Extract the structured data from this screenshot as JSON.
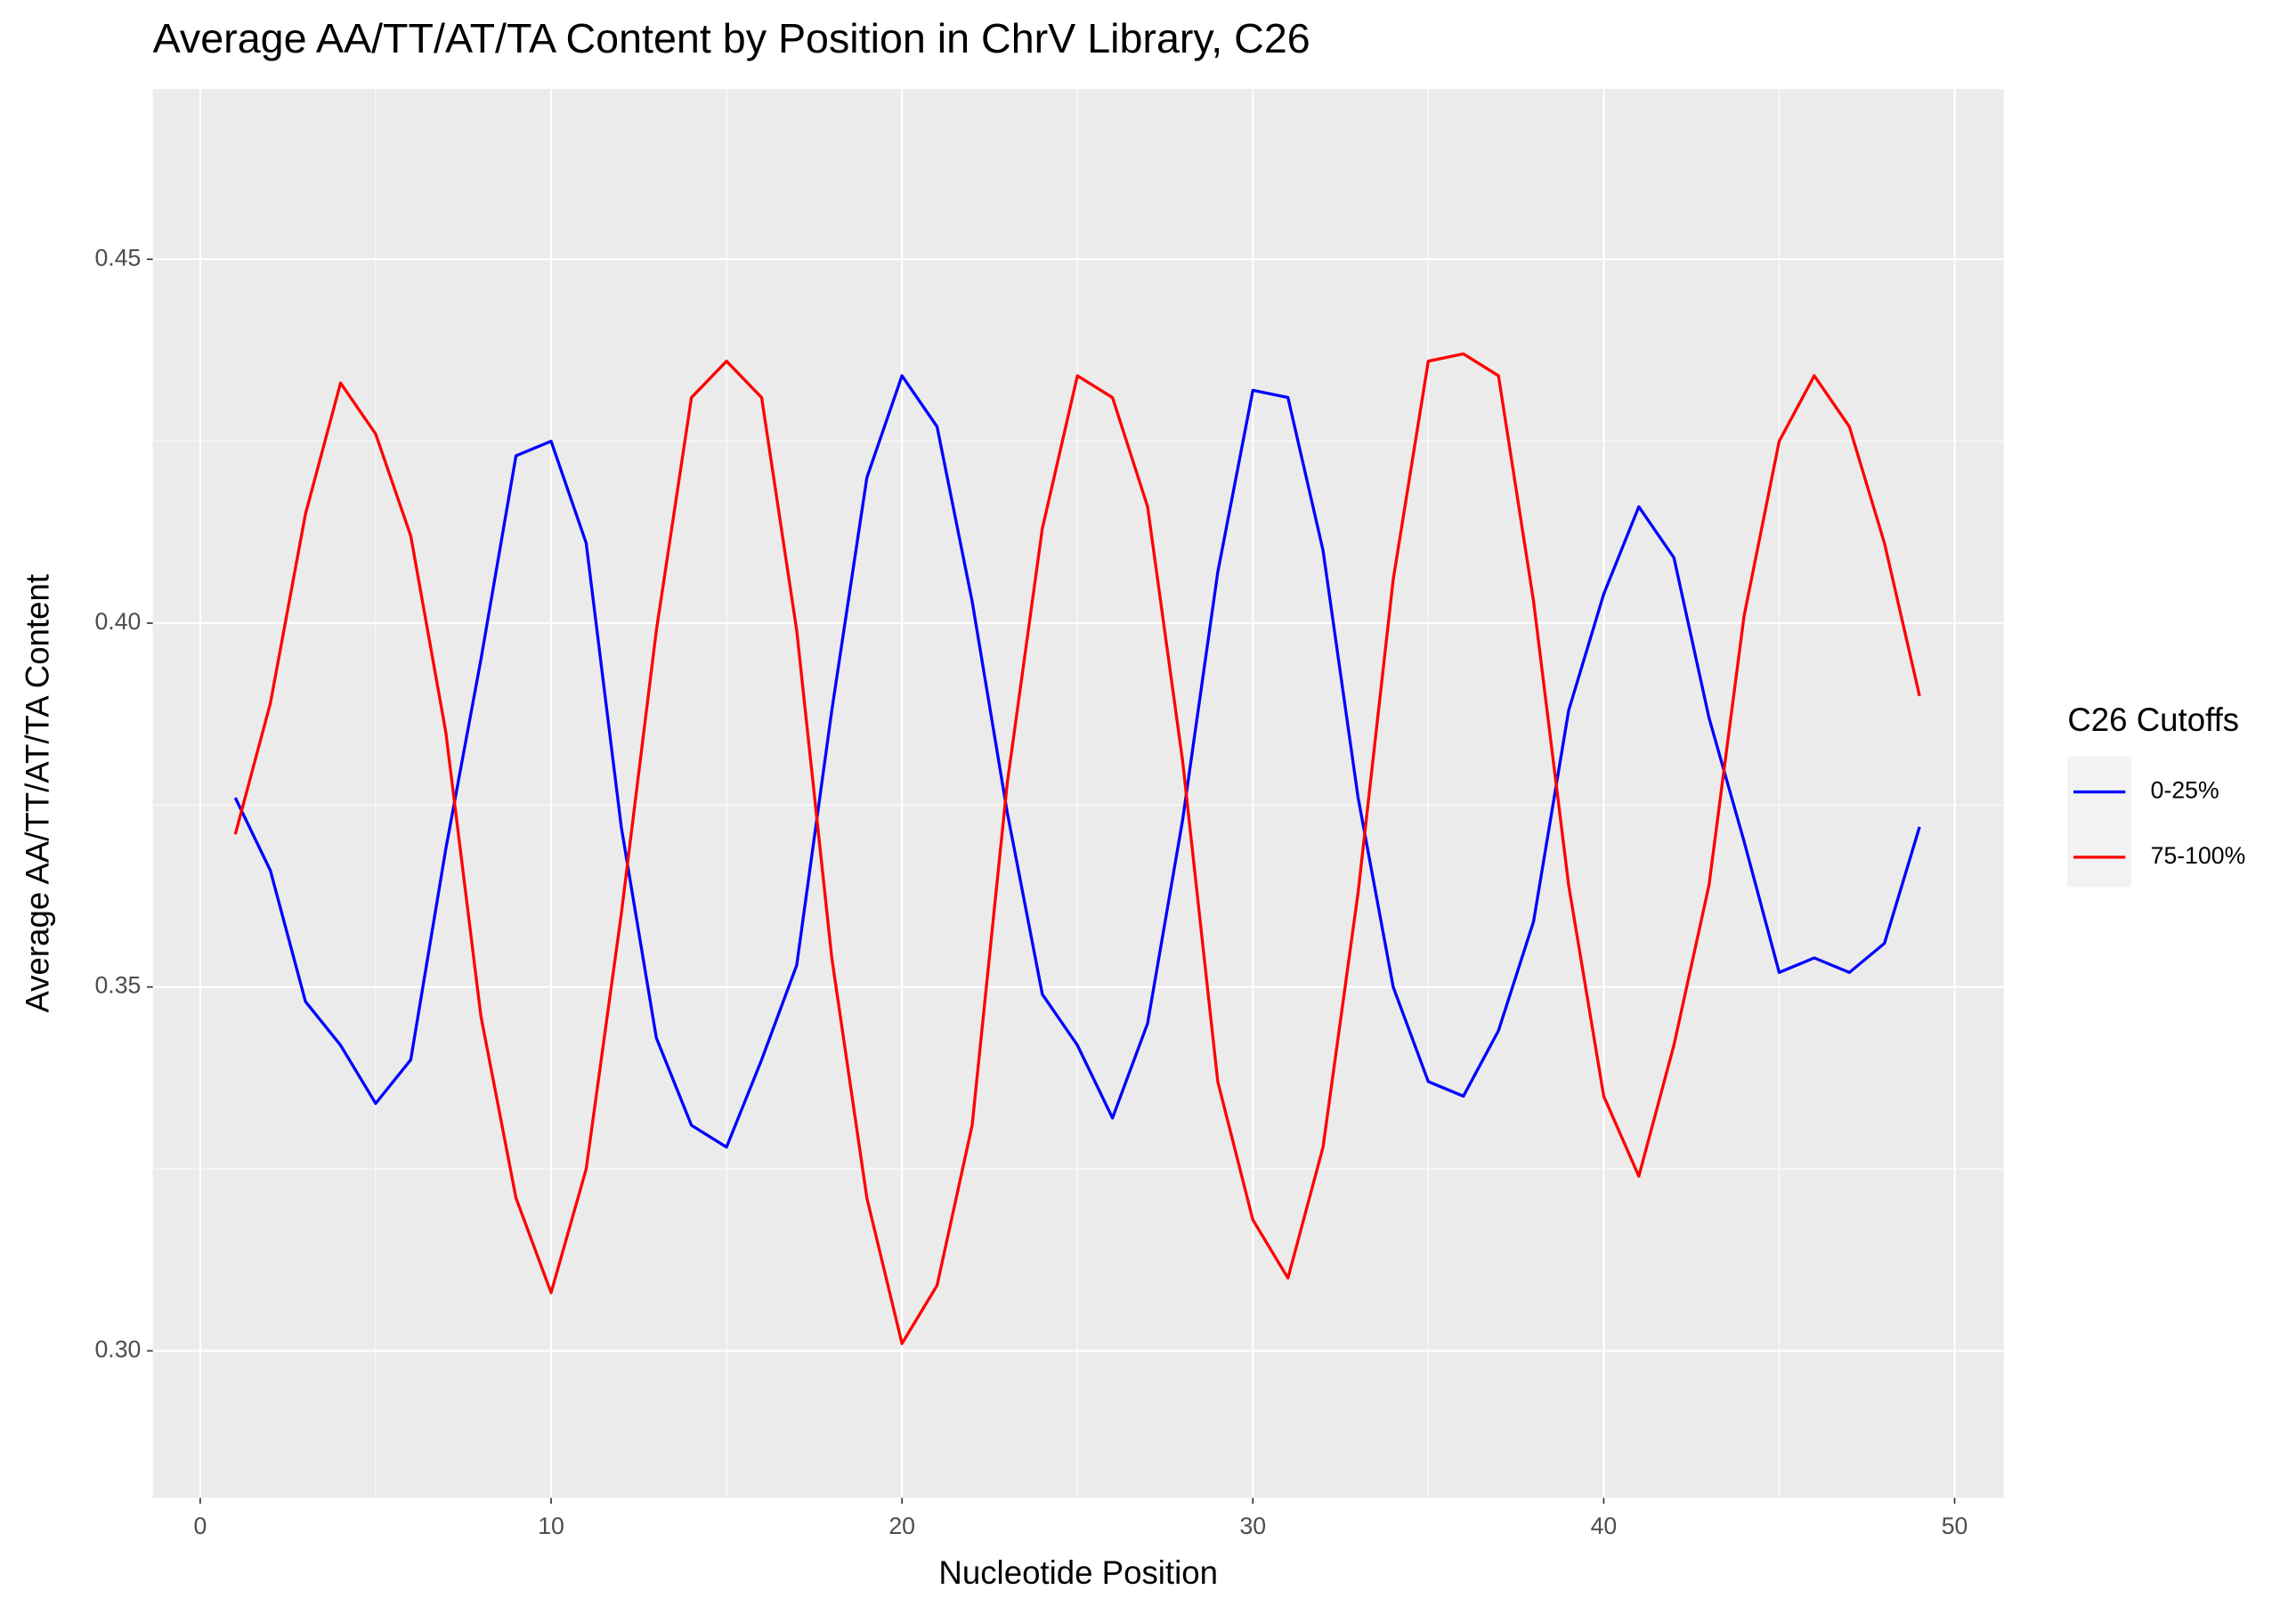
{
  "chart_data": {
    "type": "line",
    "title": "Average AA/TT/AT/TA Content by Position in ChrV Library, C26",
    "x_label": "Nucleotide Position",
    "y_label": "Average AA/TT/AT/TA Content",
    "legend_title": "C26 Cutoffs",
    "legend_position": "right",
    "grid": true,
    "x": [
      1,
      2,
      3,
      4,
      5,
      6,
      7,
      8,
      9,
      10,
      11,
      12,
      13,
      14,
      15,
      16,
      17,
      18,
      19,
      20,
      21,
      22,
      23,
      24,
      25,
      26,
      27,
      28,
      29,
      30,
      31,
      32,
      33,
      34,
      35,
      36,
      37,
      38,
      39,
      40,
      41,
      42,
      43,
      44,
      45,
      46,
      47,
      48,
      49
    ],
    "series": [
      {
        "name": "0-25%",
        "color": "#0000ff",
        "values": [
          0.376,
          0.366,
          0.348,
          0.342,
          0.334,
          0.34,
          0.369,
          0.395,
          0.423,
          0.425,
          0.411,
          0.372,
          0.343,
          0.331,
          0.328,
          0.34,
          0.353,
          0.388,
          0.42,
          0.434,
          0.427,
          0.403,
          0.374,
          0.349,
          0.342,
          0.332,
          0.345,
          0.373,
          0.407,
          0.432,
          0.431,
          0.41,
          0.376,
          0.35,
          0.337,
          0.335,
          0.344,
          0.359,
          0.388,
          0.404,
          0.416,
          0.409,
          0.387,
          0.37,
          0.352,
          0.354,
          0.352,
          0.356,
          0.372
        ]
      },
      {
        "name": "75-100%",
        "color": "#ff0000",
        "values": [
          0.371,
          0.389,
          0.415,
          0.433,
          0.426,
          0.412,
          0.385,
          0.346,
          0.321,
          0.308,
          0.325,
          0.36,
          0.399,
          0.431,
          0.436,
          0.431,
          0.399,
          0.354,
          0.321,
          0.301,
          0.309,
          0.331,
          0.378,
          0.413,
          0.434,
          0.431,
          0.416,
          0.381,
          0.337,
          0.318,
          0.31,
          0.328,
          0.363,
          0.406,
          0.436,
          0.437,
          0.434,
          0.403,
          0.364,
          0.335,
          0.324,
          0.342,
          0.364,
          0.401,
          0.425,
          0.434,
          0.427,
          0.411,
          0.39
        ]
      }
    ],
    "xlim": [
      -1.35,
      51.4
    ],
    "ylim": [
      0.2798,
      0.4734
    ],
    "xticks": [
      0,
      10,
      20,
      30,
      40,
      50
    ],
    "yticks": [
      {
        "value": 0.3,
        "label": "0.30"
      },
      0.35,
      {
        "value": 0.4,
        "label": "0.40"
      },
      0.45
    ]
  }
}
